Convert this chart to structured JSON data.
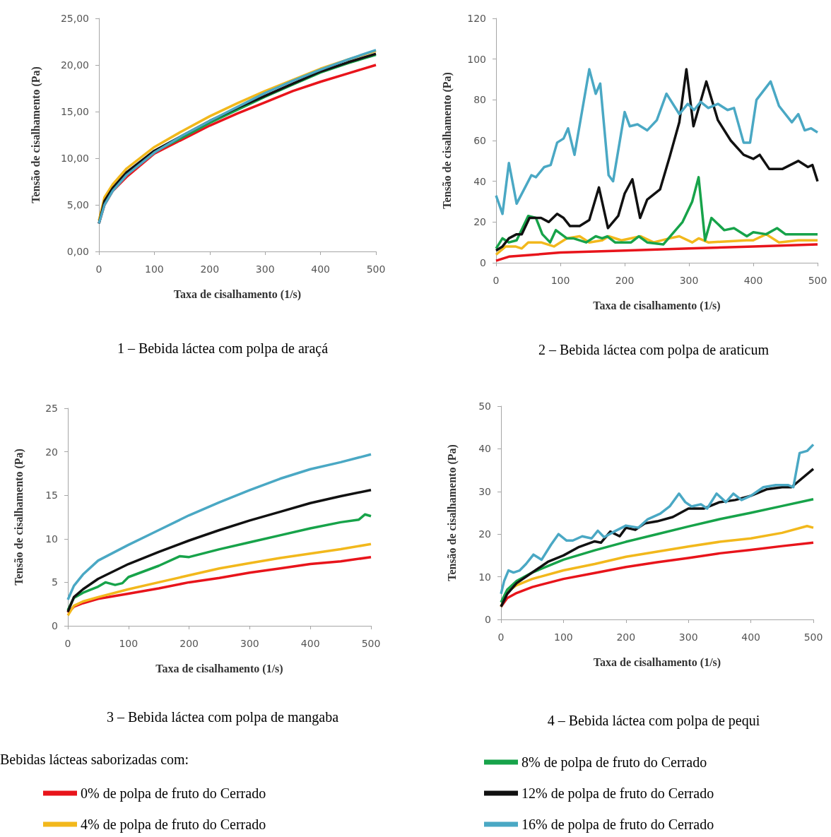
{
  "chart_data": [
    {
      "type": "line",
      "title": "1 – Bebida láctea com polpa de araçá",
      "xlabel": "Taxa de cisalhamento (1/s)",
      "ylabel": "Tensão de cisalhamento (Pa)",
      "xlim": [
        0,
        500
      ],
      "xticks": [
        0,
        100,
        200,
        300,
        400,
        500
      ],
      "ylim": [
        0,
        25
      ],
      "yticks": [
        {
          "value": 0,
          "label": "0,00"
        },
        {
          "value": 5,
          "label": "5,00"
        },
        {
          "value": 10,
          "label": "10,00"
        },
        {
          "value": 15,
          "label": "15,00"
        },
        {
          "value": 20,
          "label": "20,00"
        },
        {
          "value": 25,
          "label": "25,00"
        }
      ],
      "grid": false,
      "marker": "none",
      "series": [
        {
          "color": "#e8141b",
          "x": [
            0,
            10,
            25,
            50,
            100,
            150,
            200,
            250,
            300,
            350,
            400,
            450,
            500
          ],
          "values": [
            3,
            5,
            6.5,
            8,
            10.5,
            12,
            13.5,
            14.8,
            16,
            17.2,
            18.2,
            19.1,
            20
          ]
        },
        {
          "color": "#f2b81c",
          "x": [
            0,
            10,
            25,
            50,
            100,
            150,
            200,
            250,
            300,
            350,
            400,
            450,
            500
          ],
          "values": [
            3.3,
            5.8,
            7.2,
            8.9,
            11.2,
            12.9,
            14.5,
            15.9,
            17.2,
            18.4,
            19.6,
            20.6,
            21.5
          ]
        },
        {
          "color": "#17a34a",
          "x": [
            50,
            100,
            150,
            200,
            250,
            300,
            350,
            400,
            450,
            500
          ],
          "values": [
            8.4,
            10.7,
            12.2,
            13.8,
            15.2,
            16.6,
            17.9,
            19.2,
            20.2,
            21.1
          ]
        },
        {
          "color": "#111111",
          "x": [
            0,
            10,
            25,
            50,
            100,
            150,
            200,
            250,
            300,
            350,
            400,
            450,
            500
          ],
          "values": [
            3,
            5.4,
            6.8,
            8.5,
            10.8,
            12.4,
            14,
            15.4,
            16.7,
            18,
            19.3,
            20.3,
            21.2
          ]
        },
        {
          "color": "#4aa8c4",
          "x": [
            0,
            10,
            25,
            50,
            100,
            150,
            200,
            250,
            300,
            350,
            400,
            450,
            500
          ],
          "values": [
            3,
            5,
            6.5,
            8.2,
            10.6,
            12.4,
            14,
            15.5,
            17,
            18.3,
            19.5,
            20.6,
            21.6
          ]
        }
      ]
    },
    {
      "type": "line",
      "title": "2 – Bebida láctea com polpa de araticum",
      "xlabel": "Taxa de cisalhamento (1/s)",
      "ylabel": "Tensão de cisalhamento (Pa)",
      "xlim": [
        0,
        500
      ],
      "xticks": [
        0,
        100,
        200,
        300,
        400,
        500
      ],
      "ylim": [
        0,
        120
      ],
      "yticks": [
        0,
        20,
        40,
        60,
        80,
        100,
        120
      ],
      "grid": false,
      "marker": "none",
      "series": [
        {
          "color": "#e8141b",
          "x": [
            0,
            20,
            100,
            200,
            300,
            400,
            500
          ],
          "values": [
            1,
            3,
            5,
            6,
            7,
            8,
            9
          ]
        },
        {
          "color": "#f2b81c",
          "x": [
            0,
            15,
            30,
            40,
            50,
            70,
            90,
            110,
            130,
            145,
            165,
            175,
            195,
            225,
            245,
            270,
            285,
            305,
            315,
            330,
            390,
            400,
            420,
            440,
            470,
            500
          ],
          "values": [
            4,
            8,
            8,
            7,
            10,
            10,
            8,
            12,
            13,
            10,
            11,
            13,
            11,
            13,
            10,
            12,
            13,
            10,
            12,
            10,
            11,
            11,
            14,
            10,
            11,
            11
          ]
        },
        {
          "color": "#17a34a",
          "x": [
            0,
            10,
            20,
            32,
            50,
            62,
            72,
            84,
            93,
            110,
            120,
            140,
            155,
            165,
            173,
            185,
            210,
            222,
            235,
            260,
            290,
            305,
            315,
            325,
            335,
            355,
            370,
            390,
            400,
            420,
            437,
            450,
            500
          ],
          "values": [
            7,
            12,
            10,
            11,
            23,
            22,
            14,
            10,
            16,
            12,
            12,
            10,
            13,
            12,
            13,
            10,
            10,
            13,
            10,
            9,
            20,
            30,
            42,
            11,
            22,
            16,
            17,
            13,
            15,
            14,
            17,
            14,
            14
          ]
        },
        {
          "color": "#111111",
          "x": [
            0,
            10,
            20,
            32,
            40,
            52,
            70,
            82,
            95,
            105,
            115,
            130,
            145,
            160,
            174,
            190,
            200,
            212,
            224,
            235,
            255,
            270,
            285,
            296,
            307,
            327,
            345,
            365,
            385,
            400,
            410,
            425,
            445,
            470,
            485,
            492,
            500
          ],
          "values": [
            6,
            8,
            12,
            14,
            14,
            22,
            22,
            20,
            24,
            22,
            18,
            18,
            21,
            37,
            17,
            23,
            34,
            41,
            22,
            31,
            36,
            52,
            69,
            95,
            67,
            89,
            70,
            60,
            53,
            51,
            53,
            46,
            46,
            50,
            47,
            48,
            40
          ]
        },
        {
          "color": "#4aa8c4",
          "x": [
            0,
            10,
            20,
            32,
            55,
            62,
            75,
            85,
            95,
            105,
            112,
            122,
            145,
            155,
            162,
            175,
            182,
            200,
            208,
            220,
            235,
            250,
            265,
            285,
            298,
            308,
            318,
            330,
            345,
            360,
            370,
            385,
            395,
            405,
            427,
            440,
            460,
            470,
            480,
            490,
            500
          ],
          "values": [
            33,
            24,
            49,
            29,
            43,
            42,
            47,
            48,
            59,
            61,
            66,
            53,
            95,
            83,
            88,
            43,
            40,
            74,
            67,
            68,
            65,
            70,
            83,
            73,
            78,
            75,
            79,
            76,
            78,
            75,
            76,
            59,
            59,
            80,
            89,
            77,
            69,
            73,
            65,
            66,
            64
          ]
        }
      ]
    },
    {
      "type": "line",
      "title": "3 – Bebida láctea com polpa de mangaba",
      "xlabel": "Taxa de cisalhamento (1/s)",
      "ylabel": "Tensão de cisalhamento (Pa)",
      "xlim": [
        0,
        500
      ],
      "xticks": [
        0,
        100,
        200,
        300,
        400,
        500
      ],
      "ylim": [
        0,
        25
      ],
      "yticks": [
        0,
        5,
        10,
        15,
        20,
        25
      ],
      "grid": false,
      "marker": "none",
      "series": [
        {
          "color": "#e8141b",
          "x": [
            0,
            10,
            25,
            50,
            100,
            150,
            200,
            250,
            300,
            350,
            400,
            450,
            500
          ],
          "values": [
            1.5,
            2.2,
            2.6,
            3.1,
            3.7,
            4.3,
            5,
            5.5,
            6.1,
            6.6,
            7.1,
            7.4,
            7.9
          ]
        },
        {
          "color": "#f2b81c",
          "x": [
            0,
            10,
            25,
            50,
            100,
            150,
            200,
            250,
            300,
            350,
            400,
            450,
            500
          ],
          "values": [
            1.2,
            2.3,
            2.8,
            3.3,
            4.2,
            5,
            5.8,
            6.6,
            7.2,
            7.8,
            8.3,
            8.8,
            9.4
          ]
        },
        {
          "color": "#17a34a",
          "x": [
            0,
            10,
            25,
            50,
            62,
            78,
            90,
            100,
            150,
            185,
            200,
            250,
            300,
            350,
            400,
            450,
            480,
            490,
            500
          ],
          "values": [
            1.8,
            3.2,
            3.8,
            4.5,
            5,
            4.7,
            4.9,
            5.6,
            6.9,
            8,
            7.9,
            8.8,
            9.6,
            10.4,
            11.2,
            11.9,
            12.2,
            12.8,
            12.6
          ]
        },
        {
          "color": "#111111",
          "x": [
            0,
            10,
            25,
            50,
            100,
            150,
            200,
            250,
            300,
            350,
            400,
            450,
            500
          ],
          "values": [
            1.6,
            3.3,
            4.2,
            5.4,
            7.1,
            8.5,
            9.8,
            11,
            12.1,
            13.1,
            14.1,
            14.9,
            15.6
          ]
        },
        {
          "color": "#4aa8c4",
          "x": [
            0,
            10,
            25,
            50,
            100,
            150,
            200,
            250,
            300,
            350,
            400,
            450,
            500
          ],
          "values": [
            3,
            4.6,
            5.9,
            7.5,
            9.3,
            11,
            12.7,
            14.2,
            15.6,
            16.9,
            18,
            18.8,
            19.7
          ]
        }
      ]
    },
    {
      "type": "line",
      "title": "4 – Bebida láctea com polpa de pequi",
      "xlabel": "Taxa de cisalhamento (1/s)",
      "ylabel": "Tensão de cisalhamento (Pa)",
      "xlim": [
        0,
        500
      ],
      "xticks": [
        0,
        100,
        200,
        300,
        400,
        500
      ],
      "ylim": [
        0,
        50
      ],
      "yticks": [
        0,
        10,
        20,
        30,
        40,
        50
      ],
      "grid": false,
      "marker": "none",
      "legend": "bottom",
      "legend_title": "Bebidas lácteas saborizadas com:",
      "series": [
        {
          "name": "0% de polpa de fruto do Cerrado",
          "color": "#e8141b",
          "x": [
            0,
            10,
            25,
            50,
            100,
            150,
            200,
            250,
            300,
            350,
            400,
            450,
            500
          ],
          "values": [
            3,
            5,
            6.2,
            7.6,
            9.5,
            10.9,
            12.3,
            13.4,
            14.4,
            15.5,
            16.3,
            17.2,
            18
          ]
        },
        {
          "name": "4% de polpa de fruto do Cerrado",
          "color": "#f2b81c",
          "x": [
            0,
            10,
            25,
            50,
            100,
            150,
            200,
            250,
            300,
            350,
            400,
            450,
            490,
            500
          ],
          "values": [
            3,
            6.5,
            8,
            9.5,
            11.5,
            13,
            14.7,
            15.9,
            17.1,
            18.2,
            19,
            20.3,
            21.9,
            21.5
          ]
        },
        {
          "name": "8% de polpa de fruto do Cerrado",
          "color": "#17a34a",
          "x": [
            0,
            10,
            25,
            50,
            100,
            150,
            200,
            250,
            300,
            350,
            400,
            450,
            500
          ],
          "values": [
            4,
            7,
            9,
            11,
            14,
            16.2,
            18.2,
            20,
            21.8,
            23.5,
            25,
            26.6,
            28.2
          ]
        },
        {
          "name": "12% de polpa de fruto do Cerrado",
          "color": "#111111",
          "x": [
            0,
            10,
            25,
            50,
            75,
            100,
            125,
            150,
            160,
            175,
            190,
            200,
            215,
            230,
            250,
            275,
            300,
            325,
            350,
            375,
            400,
            425,
            450,
            465,
            500
          ],
          "values": [
            3,
            6,
            8.5,
            11,
            13.5,
            15,
            17,
            18.3,
            18,
            20.6,
            19.5,
            21.5,
            21,
            22.5,
            23,
            24,
            26,
            26,
            27.5,
            28,
            29,
            30.5,
            31,
            31,
            35.3
          ]
        },
        {
          "name": "16% de polpa de fruto do Cerrado",
          "color": "#4aa8c4",
          "x": [
            0,
            5,
            12,
            20,
            30,
            40,
            52,
            65,
            80,
            92,
            105,
            115,
            130,
            145,
            155,
            165,
            180,
            200,
            220,
            235,
            255,
            270,
            285,
            295,
            305,
            320,
            330,
            345,
            360,
            372,
            385,
            400,
            420,
            440,
            460,
            468,
            478,
            490,
            500
          ],
          "values": [
            6,
            9,
            11.5,
            11,
            11.5,
            13,
            15.2,
            14,
            17.5,
            20,
            18.5,
            18.5,
            19.5,
            19,
            20.8,
            19.3,
            20.5,
            22,
            21.5,
            23.5,
            24.8,
            26.5,
            29.5,
            27.5,
            26.5,
            27,
            26,
            29.5,
            27.5,
            29.5,
            28,
            29,
            31,
            31.5,
            31.5,
            31,
            39,
            39.5,
            41
          ]
        }
      ]
    }
  ]
}
